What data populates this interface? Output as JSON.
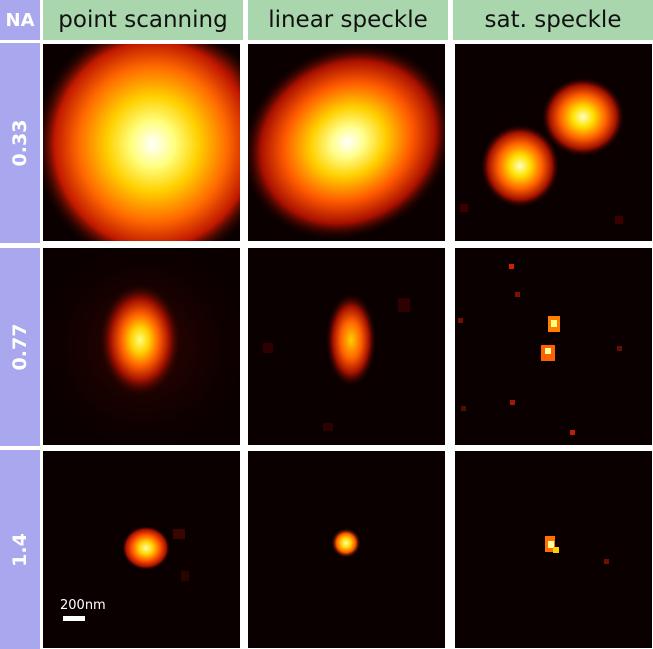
{
  "header": {
    "corner": "NA",
    "columns": [
      "point scanning",
      "linear speckle",
      "sat. speckle"
    ]
  },
  "rows": [
    "0.33",
    "0.77",
    "1.4"
  ],
  "scale_bar": {
    "label": "200nm"
  },
  "colors": {
    "header_bg": "#a9d6ad",
    "row_label_bg": "#a9a8ef",
    "panel_bg": "#0a0000",
    "colormap": "hot"
  }
}
